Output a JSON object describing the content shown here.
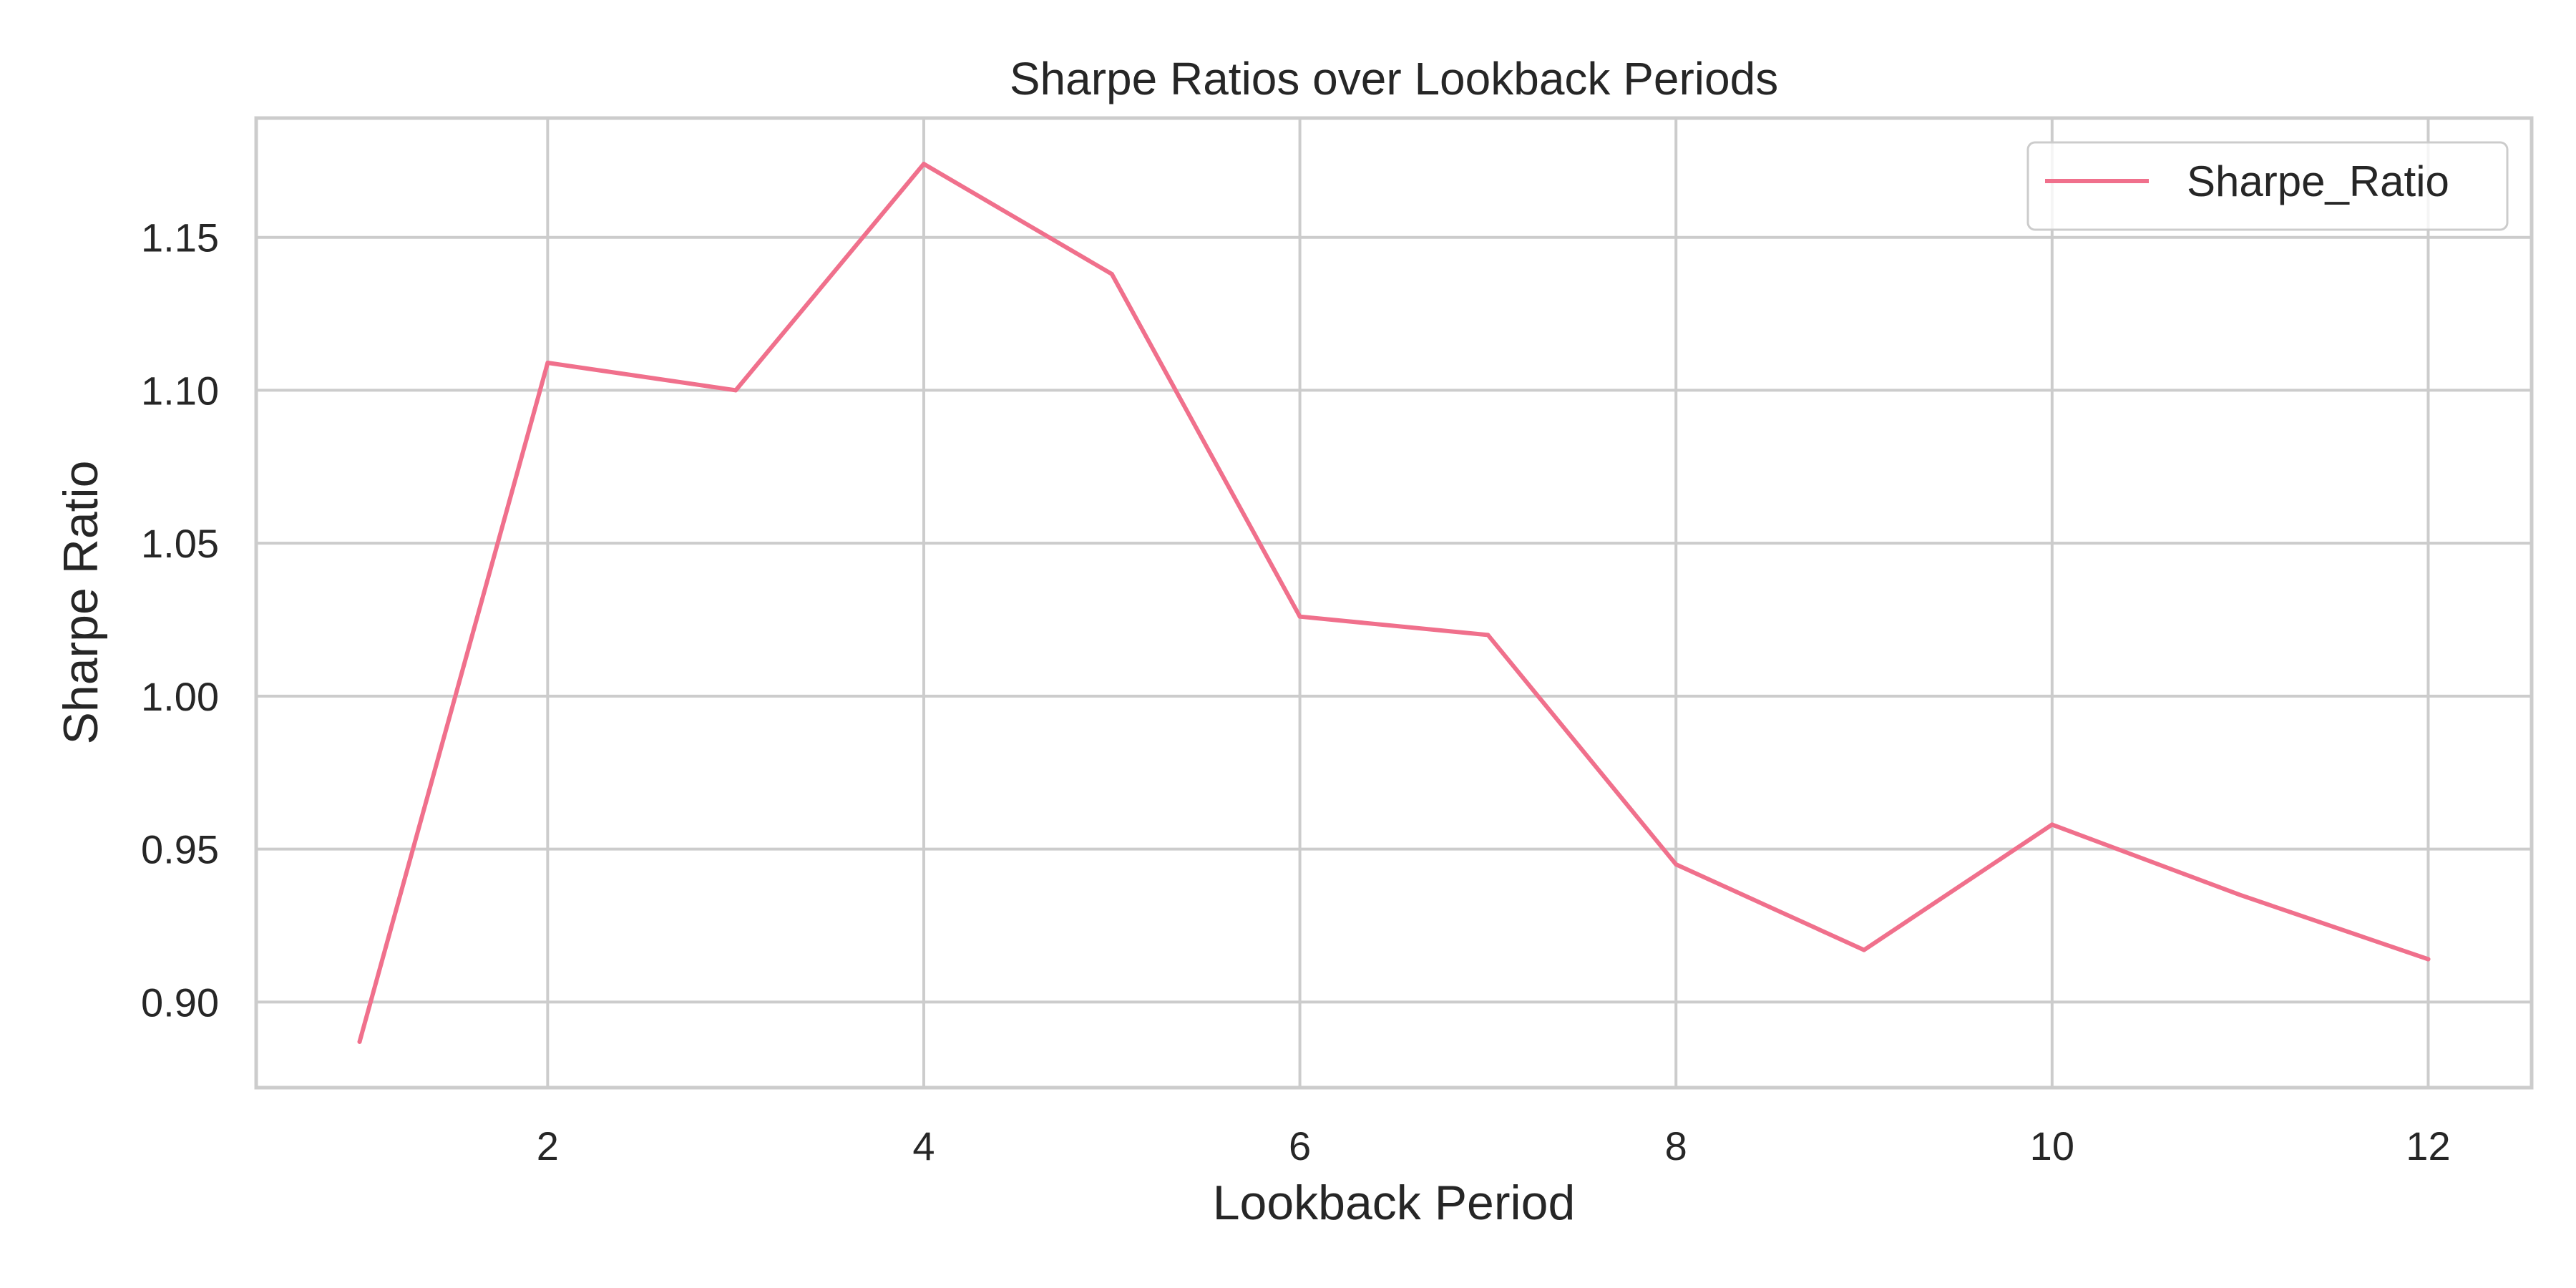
{
  "chart_data": {
    "type": "line",
    "title": "Sharpe Ratios over Lookback Periods",
    "xlabel": "Lookback Period",
    "ylabel": "Sharpe Ratio",
    "x": [
      1,
      2,
      3,
      4,
      5,
      6,
      7,
      8,
      9,
      10,
      11,
      12
    ],
    "series": [
      {
        "name": "Sharpe_Ratio",
        "color": "#f0708c",
        "values": [
          0.887,
          1.109,
          1.1,
          1.174,
          1.138,
          1.026,
          1.02,
          0.945,
          0.917,
          0.958,
          0.935,
          0.914
        ]
      }
    ],
    "xlim": [
      0.45,
      12.55
    ],
    "ylim": [
      0.872,
      1.189
    ],
    "x_ticks": [
      2,
      4,
      6,
      8,
      10,
      12
    ],
    "x_tick_labels": [
      "2",
      "4",
      "6",
      "8",
      "10",
      "12"
    ],
    "y_ticks": [
      0.9,
      0.95,
      1.0,
      1.05,
      1.1,
      1.15
    ],
    "y_tick_labels": [
      "0.90",
      "0.95",
      "1.00",
      "1.05",
      "1.10",
      "1.15"
    ],
    "grid": true,
    "legend_position": "top-right",
    "style": {
      "grid_color": "#cccccc",
      "spine_color": "#cccccc",
      "text_color": "#262626"
    }
  }
}
